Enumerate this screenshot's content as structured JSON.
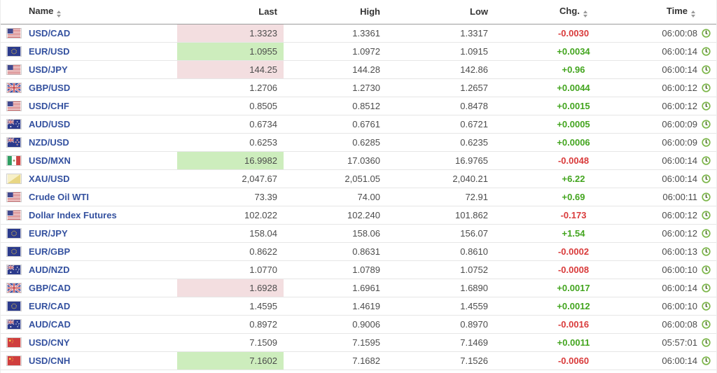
{
  "colors": {
    "up_text": "#43a51f",
    "down_text": "#d93b3b",
    "up_cell_bg": "#cdedbd",
    "down_cell_bg": "#f3dee0",
    "pair_link": "#34519f",
    "value_text": "#4c4c4c",
    "header_text": "#333333",
    "clock_ring": "#7cb649"
  },
  "icons": {
    "clock": "clock-icon",
    "sort": "sort-arrows-icon",
    "flag_suffix": "-flag-icon"
  },
  "table": {
    "columns": [
      {
        "key": "name",
        "label": "Name",
        "sortable": true
      },
      {
        "key": "last",
        "label": "Last",
        "sortable": false
      },
      {
        "key": "high",
        "label": "High",
        "sortable": false
      },
      {
        "key": "low",
        "label": "Low",
        "sortable": false
      },
      {
        "key": "chg",
        "label": "Chg.",
        "sortable": true
      },
      {
        "key": "time",
        "label": "Time",
        "sortable": true
      }
    ],
    "rows": [
      {
        "flag": "us",
        "name": "USD/CAD",
        "last": "1.3323",
        "last_highlight": "down",
        "high": "1.3361",
        "low": "1.3317",
        "chg": "-0.0030",
        "chg_dir": "down",
        "time": "06:00:08"
      },
      {
        "flag": "eu",
        "name": "EUR/USD",
        "last": "1.0955",
        "last_highlight": "up",
        "high": "1.0972",
        "low": "1.0915",
        "chg": "+0.0034",
        "chg_dir": "up",
        "time": "06:00:14"
      },
      {
        "flag": "us",
        "name": "USD/JPY",
        "last": "144.25",
        "last_highlight": "down",
        "high": "144.28",
        "low": "142.86",
        "chg": "+0.96",
        "chg_dir": "up",
        "time": "06:00:14"
      },
      {
        "flag": "uk",
        "name": "GBP/USD",
        "last": "1.2706",
        "last_highlight": null,
        "high": "1.2730",
        "low": "1.2657",
        "chg": "+0.0044",
        "chg_dir": "up",
        "time": "06:00:12"
      },
      {
        "flag": "us",
        "name": "USD/CHF",
        "last": "0.8505",
        "last_highlight": null,
        "high": "0.8512",
        "low": "0.8478",
        "chg": "+0.0015",
        "chg_dir": "up",
        "time": "06:00:12"
      },
      {
        "flag": "au",
        "name": "AUD/USD",
        "last": "0.6734",
        "last_highlight": null,
        "high": "0.6761",
        "low": "0.6721",
        "chg": "+0.0005",
        "chg_dir": "up",
        "time": "06:00:09"
      },
      {
        "flag": "nz",
        "name": "NZD/USD",
        "last": "0.6253",
        "last_highlight": null,
        "high": "0.6285",
        "low": "0.6235",
        "chg": "+0.0006",
        "chg_dir": "up",
        "time": "06:00:09"
      },
      {
        "flag": "mx",
        "name": "USD/MXN",
        "last": "16.9982",
        "last_highlight": "up",
        "high": "17.0360",
        "low": "16.9765",
        "chg": "-0.0048",
        "chg_dir": "down",
        "time": "06:00:14"
      },
      {
        "flag": "gold",
        "name": "XAU/USD",
        "last": "2,047.67",
        "last_highlight": null,
        "high": "2,051.05",
        "low": "2,040.21",
        "chg": "+6.22",
        "chg_dir": "up",
        "time": "06:00:14"
      },
      {
        "flag": "us",
        "name": "Crude Oil WTI",
        "last": "73.39",
        "last_highlight": null,
        "high": "74.00",
        "low": "72.91",
        "chg": "+0.69",
        "chg_dir": "up",
        "time": "06:00:11"
      },
      {
        "flag": "us",
        "name": "Dollar Index Futures",
        "last": "102.022",
        "last_highlight": null,
        "high": "102.240",
        "low": "101.862",
        "chg": "-0.173",
        "chg_dir": "down",
        "time": "06:00:12"
      },
      {
        "flag": "eu",
        "name": "EUR/JPY",
        "last": "158.04",
        "last_highlight": null,
        "high": "158.06",
        "low": "156.07",
        "chg": "+1.54",
        "chg_dir": "up",
        "time": "06:00:12"
      },
      {
        "flag": "eu",
        "name": "EUR/GBP",
        "last": "0.8622",
        "last_highlight": null,
        "high": "0.8631",
        "low": "0.8610",
        "chg": "-0.0002",
        "chg_dir": "down",
        "time": "06:00:13"
      },
      {
        "flag": "au",
        "name": "AUD/NZD",
        "last": "1.0770",
        "last_highlight": null,
        "high": "1.0789",
        "low": "1.0752",
        "chg": "-0.0008",
        "chg_dir": "down",
        "time": "06:00:10"
      },
      {
        "flag": "uk",
        "name": "GBP/CAD",
        "last": "1.6928",
        "last_highlight": "down",
        "high": "1.6961",
        "low": "1.6890",
        "chg": "+0.0017",
        "chg_dir": "up",
        "time": "06:00:14"
      },
      {
        "flag": "eu",
        "name": "EUR/CAD",
        "last": "1.4595",
        "last_highlight": null,
        "high": "1.4619",
        "low": "1.4559",
        "chg": "+0.0012",
        "chg_dir": "up",
        "time": "06:00:10"
      },
      {
        "flag": "au",
        "name": "AUD/CAD",
        "last": "0.8972",
        "last_highlight": null,
        "high": "0.9006",
        "low": "0.8970",
        "chg": "-0.0016",
        "chg_dir": "down",
        "time": "06:00:08"
      },
      {
        "flag": "cn",
        "name": "USD/CNY",
        "last": "7.1509",
        "last_highlight": null,
        "high": "7.1595",
        "low": "7.1469",
        "chg": "+0.0011",
        "chg_dir": "up",
        "time": "05:57:01"
      },
      {
        "flag": "cn",
        "name": "USD/CNH",
        "last": "7.1602",
        "last_highlight": "up",
        "high": "7.1682",
        "low": "7.1526",
        "chg": "-0.0060",
        "chg_dir": "down",
        "time": "06:00:14"
      }
    ]
  }
}
